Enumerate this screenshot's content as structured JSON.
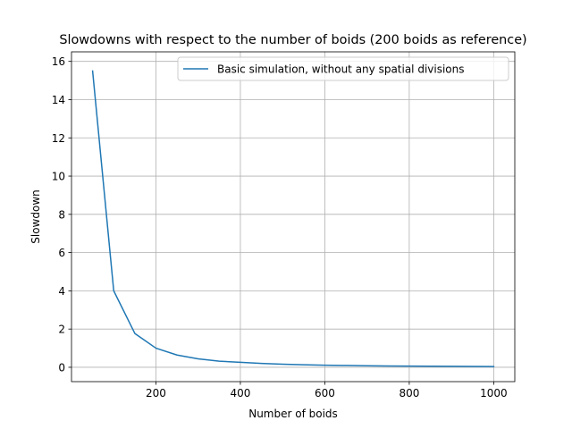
{
  "chart_data": {
    "type": "line",
    "title": "Slowdowns with respect to the number of boids (200 boids as reference)",
    "xlabel": "Number of boids",
    "ylabel": "Slowdown",
    "xlim": [
      0,
      1050
    ],
    "ylim": [
      -0.75,
      16.5
    ],
    "xticks": [
      200,
      400,
      600,
      800,
      1000
    ],
    "yticks": [
      0,
      2,
      4,
      6,
      8,
      10,
      12,
      14,
      16
    ],
    "grid": true,
    "legend_position": "upper right",
    "series": [
      {
        "name": "Basic simulation, without any spatial divisions",
        "color": "#1f77b4",
        "x": [
          50,
          100,
          150,
          200,
          250,
          300,
          350,
          400,
          450,
          500,
          550,
          600,
          650,
          700,
          750,
          800,
          850,
          900,
          950,
          1000
        ],
        "y": [
          15.5,
          4.0,
          1.77,
          1.0,
          0.64,
          0.44,
          0.32,
          0.26,
          0.2,
          0.16,
          0.13,
          0.11,
          0.095,
          0.082,
          0.071,
          0.062,
          0.055,
          0.049,
          0.044,
          0.04
        ]
      }
    ]
  }
}
